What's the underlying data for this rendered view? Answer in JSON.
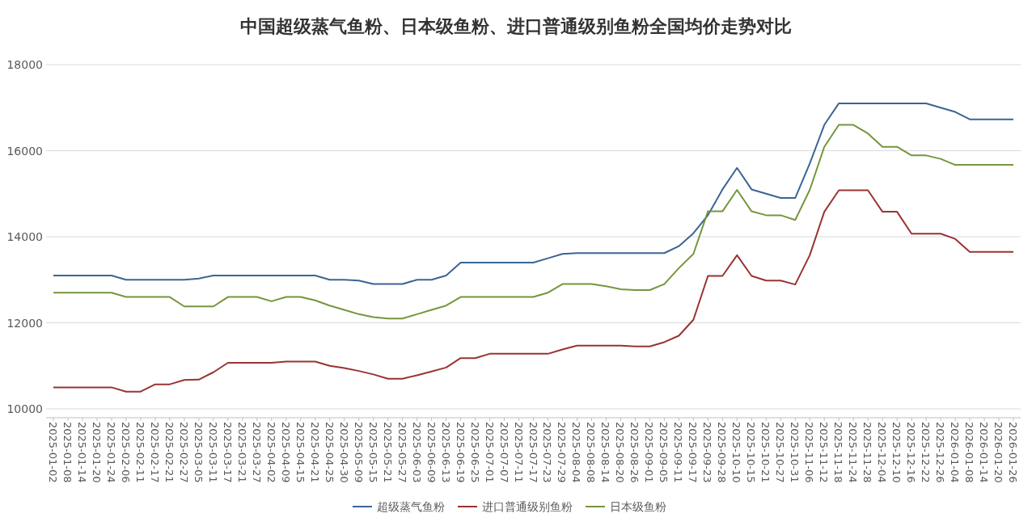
{
  "chart_data": {
    "type": "line",
    "title": "中国超级蒸气鱼粉、日本级鱼粉、进口普通级别鱼粉全国均价走势对比",
    "categories": [
      "2025-01-02",
      "2025-01-08",
      "2025-01-14",
      "2025-01-20",
      "2025-01-24",
      "2025-02-06",
      "2025-02-11",
      "2025-02-17",
      "2025-02-21",
      "2025-02-27",
      "2025-03-05",
      "2025-03-11",
      "2025-03-17",
      "2025-03-21",
      "2025-03-27",
      "2025-04-02",
      "2025-04-09",
      "2025-04-15",
      "2025-04-21",
      "2025-04-25",
      "2025-04-30",
      "2025-05-09",
      "2025-05-15",
      "2025-05-21",
      "2025-05-27",
      "2025-06-03",
      "2025-06-09",
      "2025-06-13",
      "2025-06-19",
      "2025-06-25",
      "2025-07-01",
      "2025-07-07",
      "2025-07-11",
      "2025-07-17",
      "2025-07-23",
      "2025-07-29",
      "2025-08-04",
      "2025-08-08",
      "2025-08-14",
      "2025-08-20",
      "2025-08-26",
      "2025-09-01",
      "2025-09-05",
      "2025-09-11",
      "2025-09-17",
      "2025-09-23",
      "2025-09-28",
      "2025-10-10",
      "2025-10-15",
      "2025-10-21",
      "2025-10-27",
      "2025-10-31",
      "2025-11-06",
      "2025-11-12",
      "2025-11-18",
      "2025-11-24",
      "2025-11-28",
      "2025-12-04",
      "2025-12-10",
      "2025-12-16",
      "2025-12-22",
      "2025-12-26",
      "2026-01-04",
      "2026-01-08",
      "2026-01-14",
      "2026-01-20",
      "2026-01-26"
    ],
    "series": [
      {
        "name": "超级蒸气鱼粉",
        "color": "#3b6496",
        "values": [
          13100,
          13100,
          13100,
          13100,
          13100,
          13000,
          13000,
          13000,
          13000,
          13000,
          13030,
          13100,
          13100,
          13100,
          13100,
          13100,
          13100,
          13100,
          13100,
          13000,
          13000,
          12980,
          12900,
          12900,
          12900,
          13000,
          13000,
          13100,
          13400,
          13400,
          13400,
          13400,
          13400,
          13400,
          13500,
          13600,
          13620,
          13620,
          13620,
          13620,
          13620,
          13620,
          13620,
          13780,
          14080,
          14500,
          15100,
          15600,
          15100,
          15000,
          14900,
          14900,
          15700,
          16600,
          17100,
          17100,
          17100,
          17100,
          17100,
          17100,
          17100,
          17000,
          16900,
          16730,
          16730,
          16730,
          16730
        ]
      },
      {
        "name": "进口普通级别鱼粉",
        "color": "#993333",
        "values": [
          10500,
          10500,
          10500,
          10500,
          10500,
          10400,
          10400,
          10570,
          10570,
          10670,
          10680,
          10850,
          11070,
          11070,
          11070,
          11070,
          11100,
          11100,
          11100,
          11000,
          10950,
          10880,
          10800,
          10700,
          10700,
          10780,
          10870,
          10960,
          11180,
          11180,
          11280,
          11280,
          11280,
          11280,
          11280,
          11380,
          11470,
          11470,
          11470,
          11470,
          11450,
          11450,
          11550,
          11700,
          12070,
          13090,
          13090,
          13570,
          13090,
          12980,
          12980,
          12890,
          13570,
          14580,
          15080,
          15080,
          15080,
          14580,
          14580,
          14070,
          14070,
          14070,
          13950,
          13650,
          13650,
          13650,
          13650
        ]
      },
      {
        "name": "日本级鱼粉",
        "color": "#74963c",
        "values": [
          12700,
          12700,
          12700,
          12700,
          12700,
          12600,
          12600,
          12600,
          12600,
          12380,
          12380,
          12380,
          12600,
          12600,
          12600,
          12500,
          12600,
          12600,
          12520,
          12400,
          12300,
          12200,
          12130,
          12100,
          12100,
          12200,
          12300,
          12400,
          12600,
          12600,
          12600,
          12600,
          12600,
          12600,
          12700,
          12900,
          12900,
          12900,
          12850,
          12780,
          12760,
          12760,
          12900,
          13270,
          13600,
          14590,
          14590,
          15090,
          14590,
          14500,
          14500,
          14390,
          15090,
          16090,
          16600,
          16600,
          16400,
          16090,
          16090,
          15890,
          15890,
          15810,
          15670,
          15670,
          15670,
          15670,
          15670
        ]
      }
    ],
    "ylim": [
      10000,
      18000
    ],
    "yticks": [
      10000,
      12000,
      14000,
      16000,
      18000
    ],
    "grid": "y",
    "legend": "bottom",
    "marker": "none",
    "line_style": "solid"
  }
}
